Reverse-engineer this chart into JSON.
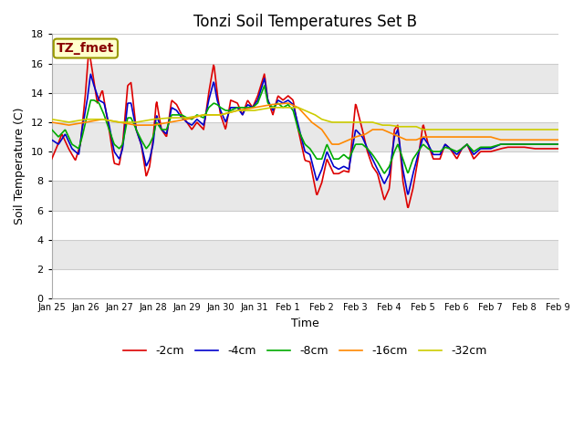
{
  "title": "Tonzi Soil Temperatures Set B",
  "xlabel": "Time",
  "ylabel": "Soil Temperature (C)",
  "ylim": [
    0,
    18
  ],
  "yticks": [
    0,
    2,
    4,
    6,
    8,
    10,
    12,
    14,
    16,
    18
  ],
  "x_labels": [
    "Jan 25",
    "Jan 26",
    "Jan 27",
    "Jan 28",
    "Jan 29",
    "Jan 30",
    "Jan 31",
    "Feb 1",
    "Feb 2",
    "Feb 3",
    "Feb 4",
    "Feb 5",
    "Feb 6",
    "Feb 7",
    "Feb 8",
    "Feb 9"
  ],
  "annotation_text": "TZ_fmet",
  "annotation_color": "#880000",
  "annotation_bg": "#ffffcc",
  "annotation_border": "#999900",
  "series_colors": [
    "#dd0000",
    "#0000cc",
    "#00aa00",
    "#ff8800",
    "#cccc00"
  ],
  "series_labels": [
    "-2cm",
    "-4cm",
    "-8cm",
    "-16cm",
    "-32cm"
  ],
  "bg_color": "#ffffff",
  "band_colors": [
    "#ffffff",
    "#e8e8e8"
  ],
  "grid_line_color": "#cccccc",
  "title_fontsize": 12,
  "axis_fontsize": 9,
  "tick_fontsize": 8,
  "lw": 1.2
}
